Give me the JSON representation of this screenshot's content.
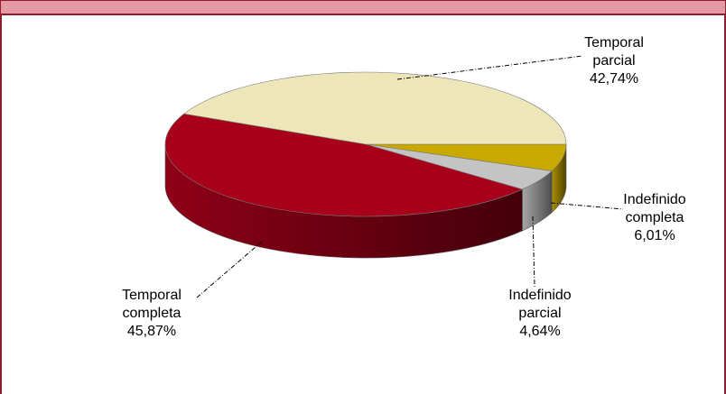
{
  "chart_data": {
    "type": "pie3d",
    "categories": [
      "Indefinido completa",
      "Indefinido parcial",
      "Temporal completa",
      "Temporal parcial"
    ],
    "values": [
      6.01,
      4.64,
      45.87,
      42.74
    ],
    "value_labels": [
      "6,01%",
      "4,64%",
      "45,87%",
      "42,74%"
    ],
    "colors": [
      "#c9a800",
      "#c4c4c4",
      "#a8001a",
      "#ede6b8"
    ]
  }
}
